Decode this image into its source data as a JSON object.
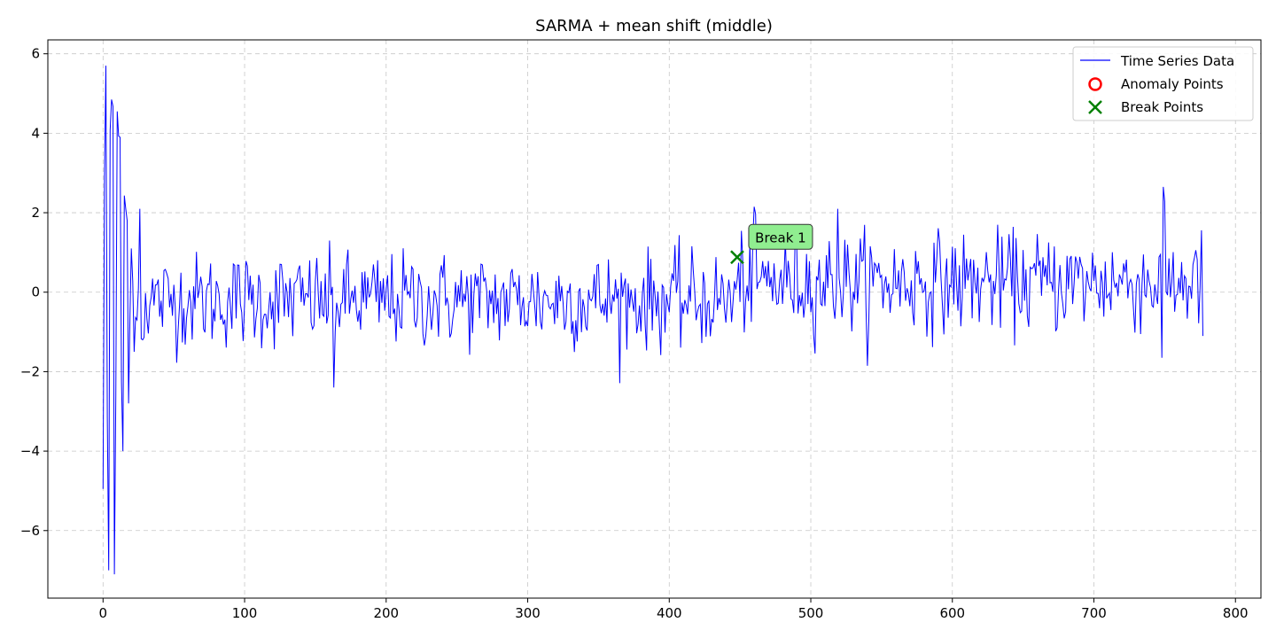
{
  "chart_data": {
    "type": "line",
    "title": "SARMA + mean shift (middle)",
    "xlabel": "",
    "ylabel": "",
    "xlim": [
      -39,
      818
    ],
    "ylim": [
      -7.7,
      6.35
    ],
    "xticks": [
      0,
      100,
      200,
      300,
      400,
      500,
      600,
      700,
      800
    ],
    "xtick_labels": [
      "0",
      "100",
      "200",
      "300",
      "400",
      "500",
      "600",
      "700",
      "800"
    ],
    "yticks": [
      -6,
      -4,
      -2,
      0,
      2,
      4,
      6
    ],
    "ytick_labels": [
      "−6",
      "−4",
      "−2",
      "0",
      "2",
      "4",
      "6"
    ],
    "grid": true,
    "legend_position": "top-right",
    "series": [
      {
        "name": "Time Series Data",
        "kind": "line",
        "color": "#0000ff",
        "length": 778
      }
    ],
    "anomaly_points": {
      "name": "Anomaly Points",
      "color": "#ff0000",
      "points": []
    },
    "break_points": {
      "name": "Break Points",
      "color": "#008000",
      "points": [
        {
          "x": 448,
          "y": 0.88,
          "label": "Break 1"
        }
      ]
    },
    "colors": {
      "series": "#0000ff",
      "anomaly": "#ff0000",
      "break": "#008000",
      "annotation_bg": "#90ee90"
    }
  }
}
